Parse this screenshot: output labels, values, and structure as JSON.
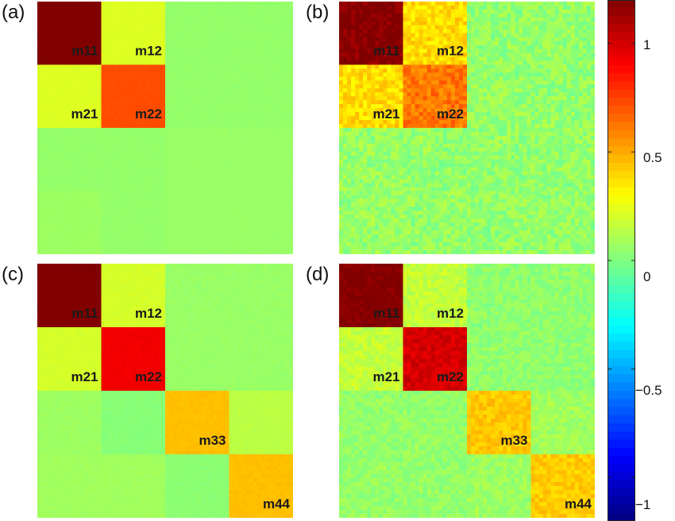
{
  "chart_data": {
    "type": "heatmap",
    "colormap": "jet",
    "value_range": [
      -1.2,
      1.2
    ],
    "colorbar": {
      "ticks": [
        1,
        0.5,
        0,
        -0.5,
        -1
      ],
      "tick_labels": [
        "1",
        "0.5",
        "0",
        "−0.5",
        "−1"
      ]
    },
    "panels": [
      {
        "label": "(a)",
        "size": 4,
        "noise": 0.006,
        "matrix": [
          [
            1.2,
            0.22,
            0.05,
            0.05
          ],
          [
            0.22,
            0.72,
            0.05,
            0.05
          ],
          [
            0.05,
            0.05,
            0.06,
            0.06
          ],
          [
            0.07,
            0.05,
            0.06,
            0.06
          ]
        ],
        "cell_labels": [
          {
            "text": "m11",
            "row": 0,
            "col": 0
          },
          {
            "text": "m12",
            "row": 0,
            "col": 1
          },
          {
            "text": "m21",
            "row": 1,
            "col": 0
          },
          {
            "text": "m22",
            "row": 1,
            "col": 1
          }
        ]
      },
      {
        "label": "(b)",
        "size": 4,
        "noise": 0.09,
        "matrix": [
          [
            1.2,
            0.38,
            0.05,
            0.05
          ],
          [
            0.38,
            0.62,
            0.05,
            0.05
          ],
          [
            0.06,
            0.05,
            0.05,
            0.05
          ],
          [
            0.06,
            0.05,
            0.05,
            0.05
          ]
        ],
        "cell_labels": [
          {
            "text": "m11",
            "row": 0,
            "col": 0
          },
          {
            "text": "m12",
            "row": 0,
            "col": 1
          },
          {
            "text": "m21",
            "row": 1,
            "col": 0
          },
          {
            "text": "m22",
            "row": 1,
            "col": 1
          }
        ]
      },
      {
        "label": "(c)",
        "size": 4,
        "noise": 0.012,
        "matrix": [
          [
            1.2,
            0.2,
            0.06,
            0.06
          ],
          [
            0.2,
            0.93,
            0.06,
            0.06
          ],
          [
            0.07,
            0.02,
            0.45,
            0.14
          ],
          [
            0.08,
            0.08,
            0.03,
            0.45
          ]
        ],
        "cell_labels": [
          {
            "text": "m11",
            "row": 0,
            "col": 0
          },
          {
            "text": "m12",
            "row": 0,
            "col": 1
          },
          {
            "text": "m21",
            "row": 1,
            "col": 0
          },
          {
            "text": "m22",
            "row": 1,
            "col": 1
          },
          {
            "text": "m33",
            "row": 2,
            "col": 2
          },
          {
            "text": "m44",
            "row": 3,
            "col": 3
          }
        ]
      },
      {
        "label": "(d)",
        "size": 4,
        "noise": 0.06,
        "matrix": [
          [
            1.2,
            0.16,
            0.04,
            0.04
          ],
          [
            0.16,
            1.0,
            0.04,
            0.04
          ],
          [
            0.05,
            0.05,
            0.43,
            0.08
          ],
          [
            0.05,
            0.05,
            0.07,
            0.42
          ]
        ],
        "cell_labels": [
          {
            "text": "m11",
            "row": 0,
            "col": 0
          },
          {
            "text": "m12",
            "row": 0,
            "col": 1
          },
          {
            "text": "m21",
            "row": 1,
            "col": 0
          },
          {
            "text": "m22",
            "row": 1,
            "col": 1
          },
          {
            "text": "m33",
            "row": 2,
            "col": 2
          },
          {
            "text": "m44",
            "row": 3,
            "col": 3
          }
        ]
      }
    ]
  }
}
